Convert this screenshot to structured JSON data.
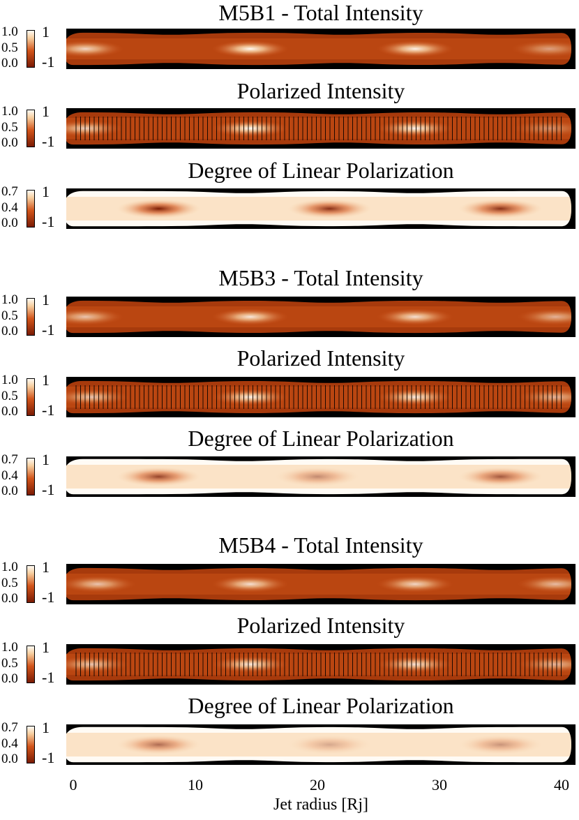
{
  "chart_data": {
    "type": "heatmap",
    "x_axis": {
      "label": "Jet radius [Rj]",
      "ticks": [
        0,
        10,
        20,
        30,
        40
      ],
      "range": [
        0,
        40
      ]
    },
    "models": [
      {
        "name": "M5B1",
        "panels": [
          {
            "quantity": "total",
            "title": "M5B1 - Total Intensity",
            "scale_ticks": [
              "1.0",
              "0.5",
              "0.0"
            ],
            "sign_ticks": [
              "1",
              "-1"
            ],
            "knot_x": [
              1,
              14.5,
              28,
              39
            ],
            "knot_strength": [
              0.8,
              1.0,
              0.95,
              0.5
            ],
            "pinch_x": [
              8,
              22,
              35
            ],
            "vectors": false
          },
          {
            "quantity": "polarized",
            "title": "Polarized Intensity",
            "scale_ticks": [
              "1.0",
              "0.5",
              "0.0"
            ],
            "sign_ticks": [
              "1",
              "-1"
            ],
            "knot_x": [
              1,
              14.5,
              28,
              39
            ],
            "knot_strength": [
              0.75,
              1.0,
              0.95,
              0.4
            ],
            "pinch_x": [
              8,
              22,
              35
            ],
            "vectors": true
          },
          {
            "quantity": "degree",
            "title": "Degree of Linear Polarization",
            "scale_ticks": [
              "0.7",
              "0.4",
              "0.0"
            ],
            "sign_ticks": [
              "1",
              "-1"
            ],
            "knot_x": [
              7,
              21,
              35
            ],
            "knot_strength": [
              1.0,
              0.9,
              0.9
            ],
            "pinch_x": [
              14,
              28
            ],
            "vectors": false
          }
        ]
      },
      {
        "name": "M5B3",
        "panels": [
          {
            "quantity": "total",
            "title": "M5B3 - Total Intensity",
            "scale_ticks": [
              "1.0",
              "0.5",
              "0.0"
            ],
            "sign_ticks": [
              "1",
              "-1"
            ],
            "knot_x": [
              1,
              14.5,
              28,
              39.5
            ],
            "knot_strength": [
              0.7,
              0.9,
              0.85,
              0.6
            ],
            "pinch_x": [
              8,
              21,
              35
            ],
            "vectors": false
          },
          {
            "quantity": "polarized",
            "title": "Polarized Intensity",
            "scale_ticks": [
              "1.0",
              "0.5",
              "0.0"
            ],
            "sign_ticks": [
              "1",
              "-1"
            ],
            "knot_x": [
              1.5,
              14.5,
              28,
              39.5
            ],
            "knot_strength": [
              0.7,
              0.95,
              0.9,
              0.6
            ],
            "pinch_x": [
              8,
              21,
              35
            ],
            "vectors": true
          },
          {
            "quantity": "degree",
            "title": "Degree of Linear Polarization",
            "scale_ticks": [
              "0.7",
              "0.4",
              "0.0"
            ],
            "sign_ticks": [
              "1",
              "-1"
            ],
            "knot_x": [
              7,
              20,
              35
            ],
            "knot_strength": [
              0.8,
              0.45,
              0.7
            ],
            "pinch_x": [
              14,
              28
            ],
            "vectors": false
          }
        ]
      },
      {
        "name": "M5B4",
        "panels": [
          {
            "quantity": "total",
            "title": "M5B4 - Total Intensity",
            "scale_ticks": [
              "1.0",
              "0.5",
              "0.0"
            ],
            "sign_ticks": [
              "1",
              "-1"
            ],
            "knot_x": [
              2,
              14.5,
              28,
              39.5
            ],
            "knot_strength": [
              0.7,
              0.85,
              0.8,
              0.65
            ],
            "pinch_x": [
              8,
              21,
              35
            ],
            "vectors": false
          },
          {
            "quantity": "polarized",
            "title": "Polarized Intensity",
            "scale_ticks": [
              "1.0",
              "0.5",
              "0.0"
            ],
            "sign_ticks": [
              "1",
              "-1"
            ],
            "knot_x": [
              1.5,
              14.5,
              28,
              39.5
            ],
            "knot_strength": [
              0.7,
              0.9,
              0.85,
              0.6
            ],
            "pinch_x": [
              8,
              21,
              35
            ],
            "vectors": true
          },
          {
            "quantity": "degree",
            "title": "Degree of Linear Polarization",
            "scale_ticks": [
              "0.7",
              "0.4",
              "0.0"
            ],
            "sign_ticks": [
              "1",
              "-1"
            ],
            "knot_x": [
              7,
              21,
              35
            ],
            "knot_strength": [
              0.6,
              0.3,
              0.4
            ],
            "pinch_x": [
              14,
              28
            ],
            "vectors": false
          }
        ]
      }
    ]
  },
  "colormap": {
    "dark": "#7a1b04",
    "mid": "#d2541a",
    "light": "#f7cfa0",
    "white": "#fffbf5",
    "frame": "#000000"
  }
}
